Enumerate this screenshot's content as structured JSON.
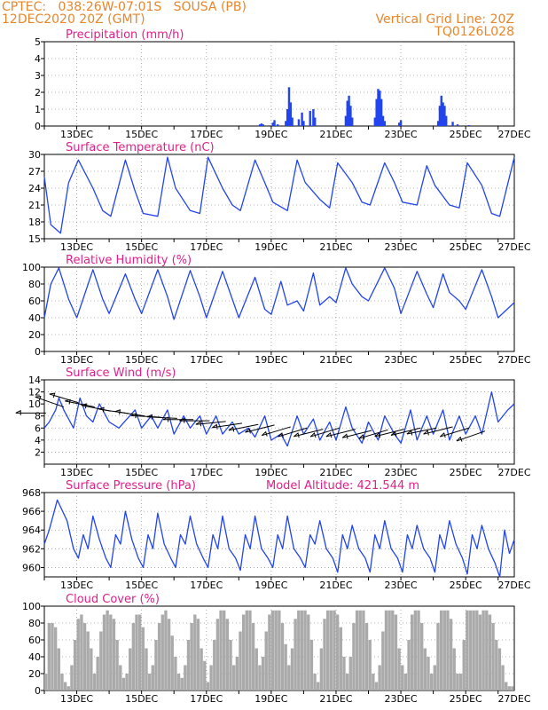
{
  "header": {
    "left_line1": "CPTEC:   038:26W-07:01S   SOUSA (PB)",
    "left_line2": "12DEC2020 20Z (GMT)",
    "right_line1": "Vertical Grid Line: 20Z",
    "right_line2": "TQ0126L028"
  },
  "model_altitude": "Model Altitude: 421.544 m",
  "colors": {
    "header": "#e8862a",
    "title": "#e0208a",
    "series": "#2244ee",
    "cloud": "#aaaaaa",
    "arrow": "#000000"
  },
  "chart_data": [
    {
      "type": "bar",
      "title": "Precipitation (mm/h)",
      "ylim": [
        0,
        5
      ],
      "yticks": [
        "5",
        "4",
        "3",
        "2",
        "1",
        "0"
      ],
      "xtick_labels": [
        "13DEC",
        "15DEC",
        "17DEC",
        "19DEC",
        "21DEC",
        "23DEC",
        "25DEC",
        "27DEC"
      ],
      "x_unit": "days since 12DEC 20Z (0-14.5)",
      "grid": true,
      "points": [
        [
          6.65,
          0.1
        ],
        [
          6.7,
          0.15
        ],
        [
          6.75,
          0.1
        ],
        [
          7.05,
          0.2
        ],
        [
          7.1,
          0.35
        ],
        [
          7.2,
          0.1
        ],
        [
          7.45,
          0.3
        ],
        [
          7.5,
          1.0
        ],
        [
          7.55,
          2.3
        ],
        [
          7.6,
          1.4
        ],
        [
          7.65,
          0.5
        ],
        [
          7.85,
          0.4
        ],
        [
          7.95,
          0.8
        ],
        [
          8.0,
          0.3
        ],
        [
          8.2,
          0.9
        ],
        [
          8.3,
          1.0
        ],
        [
          8.35,
          0.5
        ],
        [
          9.3,
          0.6
        ],
        [
          9.35,
          1.5
        ],
        [
          9.4,
          1.8
        ],
        [
          9.45,
          1.2
        ],
        [
          9.5,
          0.5
        ],
        [
          10.2,
          0.5
        ],
        [
          10.25,
          1.6
        ],
        [
          10.3,
          2.2
        ],
        [
          10.35,
          2.1
        ],
        [
          10.4,
          1.6
        ],
        [
          10.45,
          0.6
        ],
        [
          10.5,
          0.3
        ],
        [
          10.95,
          0.2
        ],
        [
          11.0,
          0.35
        ],
        [
          12.15,
          0.3
        ],
        [
          12.2,
          1.2
        ],
        [
          12.25,
          1.8
        ],
        [
          12.3,
          1.4
        ],
        [
          12.35,
          1.2
        ],
        [
          12.4,
          0.6
        ],
        [
          12.6,
          0.25
        ],
        [
          12.75,
          0.1
        ],
        [
          13.1,
          0.05
        ]
      ]
    },
    {
      "type": "line",
      "title": "Surface Temperature (nC)",
      "ylim": [
        15,
        30
      ],
      "yticks": [
        "30",
        "27",
        "24",
        "21",
        "18",
        "15"
      ],
      "xtick_labels": [
        "13DEC",
        "15DEC",
        "17DEC",
        "19DEC",
        "21DEC",
        "23DEC",
        "25DEC",
        "27DEC"
      ],
      "x_unit": "days since 12DEC 20Z (0-14.5)",
      "grid": true,
      "x": [
        0,
        0.2,
        0.5,
        0.75,
        1.05,
        1.5,
        1.8,
        2.05,
        2.5,
        2.8,
        3.05,
        3.5,
        3.8,
        4.05,
        4.5,
        4.8,
        5.05,
        5.5,
        5.8,
        6.05,
        6.5,
        6.8,
        7.05,
        7.5,
        7.8,
        8.05,
        8.5,
        8.8,
        9.05,
        9.5,
        9.8,
        10.05,
        10.5,
        10.8,
        11.05,
        11.5,
        11.8,
        12.05,
        12.5,
        12.8,
        13.05,
        13.5,
        13.8,
        14.05,
        14.5
      ],
      "y": [
        26,
        17.5,
        16,
        25,
        29,
        24,
        20,
        19,
        29,
        23.5,
        19.5,
        19,
        29.5,
        24,
        20,
        19.5,
        29.5,
        24,
        21,
        20,
        29,
        25,
        21.5,
        20,
        29,
        25,
        22,
        20.5,
        28.5,
        25,
        21.5,
        21,
        28.5,
        25,
        21.5,
        21,
        28,
        24.5,
        21,
        20.5,
        28.5,
        24.5,
        19.5,
        19,
        29.5
      ]
    },
    {
      "type": "line",
      "title": "Relative Humidity (%)",
      "ylim": [
        0,
        100
      ],
      "yticks": [
        "100",
        "80",
        "60",
        "40",
        "20",
        "0"
      ],
      "xtick_labels": [
        "13DEC",
        "15DEC",
        "17DEC",
        "19DEC",
        "21DEC",
        "23DEC",
        "25DEC",
        "27DEC"
      ],
      "x_unit": "days since 12DEC 20Z (0-14.5)",
      "grid": true,
      "x": [
        0,
        0.2,
        0.45,
        0.75,
        1.0,
        1.5,
        1.8,
        2.0,
        2.5,
        2.8,
        3.0,
        3.5,
        3.8,
        4.0,
        4.5,
        4.8,
        5.0,
        5.5,
        5.8,
        6.0,
        6.5,
        6.8,
        7.0,
        7.3,
        7.5,
        7.8,
        8.0,
        8.3,
        8.5,
        8.8,
        9.0,
        9.3,
        9.5,
        9.8,
        10.0,
        10.5,
        10.8,
        11.0,
        11.5,
        11.8,
        12.0,
        12.3,
        12.5,
        12.8,
        13.0,
        13.5,
        13.8,
        14.0,
        14.5
      ],
      "y": [
        40,
        80,
        99,
        62,
        40,
        97,
        62,
        45,
        92,
        62,
        45,
        97,
        65,
        38,
        96,
        65,
        40,
        95,
        62,
        40,
        88,
        50,
        44,
        83,
        55,
        60,
        48,
        93,
        55,
        65,
        58,
        99,
        80,
        65,
        60,
        99,
        75,
        45,
        95,
        68,
        52,
        92,
        70,
        60,
        50,
        97,
        65,
        40,
        58
      ]
    },
    {
      "type": "line",
      "title": "Surface Wind (m/s)",
      "ylim": [
        0,
        14
      ],
      "yticks": [
        "14",
        "12",
        "10",
        "8",
        "6",
        "4",
        "2"
      ],
      "xtick_labels": [
        "13DEC",
        "15DEC",
        "17DEC",
        "19DEC",
        "21DEC",
        "23DEC",
        "25DEC",
        "27DEC"
      ],
      "x_unit": "days since 12DEC 20Z (0-14.5)",
      "grid": true,
      "x": [
        0,
        0.15,
        0.35,
        0.45,
        0.6,
        0.9,
        1.1,
        1.3,
        1.5,
        1.7,
        2.0,
        2.3,
        2.55,
        2.8,
        3.0,
        3.3,
        3.5,
        3.8,
        4.0,
        4.3,
        4.5,
        4.8,
        5.0,
        5.3,
        5.5,
        5.8,
        6.0,
        6.3,
        6.5,
        6.8,
        7.0,
        7.3,
        7.5,
        7.8,
        8.0,
        8.3,
        8.5,
        8.8,
        9.0,
        9.3,
        9.5,
        9.8,
        10.0,
        10.3,
        10.5,
        10.8,
        11.0,
        11.3,
        11.5,
        11.8,
        12.0,
        12.3,
        12.5,
        12.8,
        13.0,
        13.3,
        13.5,
        13.8,
        14.0,
        14.3,
        14.5
      ],
      "y": [
        6,
        7,
        9,
        11,
        9,
        6,
        11,
        8,
        7,
        10,
        7,
        6,
        7.5,
        9,
        6,
        8,
        6,
        9,
        5,
        8,
        6,
        8,
        5,
        8,
        5,
        7,
        5,
        6,
        4.5,
        8,
        4,
        5,
        3,
        8,
        5,
        7.5,
        4,
        7,
        4,
        9.5,
        6,
        3.5,
        7,
        4,
        8,
        5,
        3.5,
        9,
        4,
        8,
        5,
        9,
        4,
        8,
        5,
        8,
        5,
        12,
        7,
        9,
        10
      ]
    },
    {
      "type": "line",
      "title": "Surface Pressure (hPa)",
      "ylim": [
        959,
        968
      ],
      "yticks": [
        "968",
        "966",
        "964",
        "962",
        "960"
      ],
      "xtick_labels": [
        "13DEC",
        "15DEC",
        "17DEC",
        "19DEC",
        "21DEC",
        "23DEC",
        "25DEC",
        "27DEC"
      ],
      "x_unit": "days since 12DEC 20Z (0-14.5)",
      "grid": true,
      "x": [
        0,
        0.15,
        0.4,
        0.7,
        0.9,
        1.05,
        1.2,
        1.35,
        1.5,
        1.7,
        1.9,
        2.05,
        2.2,
        2.35,
        2.5,
        2.7,
        2.9,
        3.05,
        3.2,
        3.35,
        3.5,
        3.7,
        3.9,
        4.05,
        4.2,
        4.35,
        4.5,
        4.7,
        4.9,
        5.05,
        5.2,
        5.35,
        5.5,
        5.7,
        5.9,
        6.05,
        6.2,
        6.35,
        6.5,
        6.7,
        6.9,
        7.05,
        7.2,
        7.35,
        7.5,
        7.7,
        7.9,
        8.05,
        8.2,
        8.35,
        8.5,
        8.7,
        8.9,
        9.05,
        9.2,
        9.35,
        9.5,
        9.7,
        9.9,
        10.05,
        10.2,
        10.35,
        10.5,
        10.7,
        10.9,
        11.05,
        11.2,
        11.35,
        11.5,
        11.7,
        11.9,
        12.05,
        12.2,
        12.35,
        12.5,
        12.7,
        12.9,
        13.05,
        13.2,
        13.35,
        13.5,
        13.7,
        13.9,
        14.05,
        14.2,
        14.35,
        14.5
      ],
      "y": [
        962.5,
        964,
        967.2,
        965,
        962,
        961,
        963.5,
        962,
        965.5,
        963,
        961,
        960,
        963.5,
        962.5,
        966,
        963,
        961,
        960,
        963.5,
        962,
        965.8,
        962.5,
        961,
        960,
        963.5,
        962.5,
        965.5,
        962.5,
        961,
        960,
        963.5,
        962,
        965.5,
        962,
        961,
        959.7,
        963.5,
        962,
        965.5,
        962,
        961,
        960,
        963.5,
        962,
        965.5,
        962,
        961,
        960,
        963.5,
        962.5,
        965,
        962,
        961,
        959.5,
        963.5,
        962,
        964.5,
        962,
        961,
        959.5,
        963.5,
        962,
        965,
        962,
        961,
        959.5,
        963.5,
        962,
        964.5,
        962,
        961,
        959.5,
        963.5,
        962,
        965,
        962.5,
        961,
        959.3,
        963.5,
        962,
        964.5,
        962,
        960.5,
        959,
        964,
        961.5,
        963
      ]
    },
    {
      "type": "bar",
      "title": "Cloud Cover (%)",
      "ylim": [
        0,
        100
      ],
      "yticks": [
        "100",
        "80",
        "60",
        "40",
        "20",
        "0"
      ],
      "xtick_labels": [
        "13DEC",
        "15DEC",
        "17DEC",
        "19DEC",
        "21DEC",
        "23DEC",
        "25DEC",
        "27DEC"
      ],
      "x_unit": "days since 12DEC 20Z (0-14.5)",
      "grid": true,
      "x": [
        0.05,
        0.15,
        0.25,
        0.35,
        0.45,
        0.55,
        0.65,
        0.75,
        0.85,
        0.95,
        1.05,
        1.15,
        1.25,
        1.35,
        1.45,
        1.55,
        1.65,
        1.75,
        1.85,
        1.95,
        2.05,
        2.15,
        2.25,
        2.35,
        2.45,
        2.55,
        2.65,
        2.75,
        2.85,
        2.95,
        3.05,
        3.15,
        3.25,
        3.35,
        3.45,
        3.55,
        3.65,
        3.75,
        3.85,
        3.95,
        4.05,
        4.15,
        4.25,
        4.35,
        4.45,
        4.55,
        4.65,
        4.75,
        4.85,
        4.95,
        5.05,
        5.15,
        5.25,
        5.35,
        5.45,
        5.55,
        5.65,
        5.75,
        5.85,
        5.95,
        6.05,
        6.15,
        6.25,
        6.35,
        6.45,
        6.55,
        6.65,
        6.75,
        6.85,
        6.95,
        7.05,
        7.15,
        7.25,
        7.35,
        7.45,
        7.55,
        7.65,
        7.75,
        7.85,
        7.95,
        8.05,
        8.15,
        8.25,
        8.35,
        8.45,
        8.55,
        8.65,
        8.75,
        8.85,
        8.95,
        9.05,
        9.15,
        9.25,
        9.35,
        9.45,
        9.55,
        9.65,
        9.75,
        9.85,
        9.95,
        10.05,
        10.15,
        10.25,
        10.35,
        10.45,
        10.55,
        10.65,
        10.75,
        10.85,
        10.95,
        11.05,
        11.15,
        11.25,
        11.35,
        11.45,
        11.55,
        11.65,
        11.75,
        11.85,
        11.95,
        12.05,
        12.15,
        12.25,
        12.35,
        12.45,
        12.55,
        12.65,
        12.75,
        12.85,
        12.95,
        13.05,
        13.15,
        13.25,
        13.35,
        13.45,
        13.55,
        13.65,
        13.75,
        13.85,
        13.95,
        14.05,
        14.15,
        14.25,
        14.35,
        14.45
      ],
      "values": [
        20,
        80,
        80,
        75,
        50,
        20,
        10,
        5,
        30,
        60,
        85,
        90,
        80,
        70,
        50,
        20,
        40,
        70,
        90,
        95,
        90,
        85,
        60,
        30,
        15,
        20,
        50,
        80,
        90,
        90,
        75,
        50,
        20,
        30,
        60,
        80,
        90,
        95,
        85,
        65,
        40,
        20,
        15,
        30,
        60,
        80,
        90,
        85,
        50,
        35,
        10,
        30,
        60,
        85,
        95,
        95,
        85,
        60,
        30,
        40,
        70,
        90,
        95,
        95,
        80,
        50,
        30,
        40,
        70,
        90,
        95,
        95,
        95,
        80,
        55,
        30,
        50,
        85,
        95,
        95,
        95,
        90,
        60,
        20,
        10,
        50,
        85,
        95,
        95,
        95,
        90,
        75,
        40,
        20,
        40,
        80,
        95,
        95,
        95,
        80,
        60,
        20,
        10,
        30,
        70,
        95,
        95,
        95,
        90,
        50,
        30,
        20,
        60,
        90,
        95,
        95,
        80,
        50,
        40,
        20,
        30,
        80,
        95,
        95,
        95,
        85,
        50,
        20,
        20,
        60,
        95,
        95,
        95,
        95,
        90,
        95,
        95,
        90,
        80,
        60,
        50,
        30,
        10,
        5,
        5
      ]
    }
  ],
  "wind_arrows": [
    {
      "x": 0.05,
      "y": 8.5,
      "u": 1.0,
      "v": 0.0
    },
    {
      "x": 0.6,
      "y": 9.5,
      "u": 1.0,
      "v": -0.35
    },
    {
      "x": 1.05,
      "y": 10.2,
      "u": 1.0,
      "v": -0.3
    },
    {
      "x": 1.55,
      "y": 9.5,
      "u": 1.0,
      "v": -0.2
    },
    {
      "x": 2.05,
      "y": 8.8,
      "u": 1.0,
      "v": -0.2
    },
    {
      "x": 2.6,
      "y": 8.4,
      "u": 1.0,
      "v": -0.15
    },
    {
      "x": 3.1,
      "y": 8.0,
      "u": 1.0,
      "v": -0.15
    },
    {
      "x": 3.6,
      "y": 7.8,
      "u": 1.0,
      "v": -0.05
    },
    {
      "x": 4.1,
      "y": 7.6,
      "u": 1.0,
      "v": -0.05
    },
    {
      "x": 4.6,
      "y": 7.4,
      "u": 1.0,
      "v": 0.0
    },
    {
      "x": 5.1,
      "y": 7.2,
      "u": 1.0,
      "v": 0.0
    },
    {
      "x": 5.6,
      "y": 7.1,
      "u": 1.0,
      "v": 0.1
    },
    {
      "x": 6.1,
      "y": 6.8,
      "u": 1.0,
      "v": 0.15
    },
    {
      "x": 6.6,
      "y": 6.6,
      "u": 1.0,
      "v": 0.2
    },
    {
      "x": 7.1,
      "y": 6.5,
      "u": 1.0,
      "v": 0.25
    },
    {
      "x": 7.6,
      "y": 6.2,
      "u": 1.0,
      "v": 0.3
    },
    {
      "x": 8.1,
      "y": 6.0,
      "u": 1.0,
      "v": 0.3
    },
    {
      "x": 8.6,
      "y": 5.8,
      "u": 1.0,
      "v": 0.25
    },
    {
      "x": 9.1,
      "y": 6.0,
      "u": 1.0,
      "v": 0.3
    },
    {
      "x": 9.6,
      "y": 5.8,
      "u": 1.0,
      "v": 0.25
    },
    {
      "x": 10.1,
      "y": 5.6,
      "u": 1.0,
      "v": 0.25
    },
    {
      "x": 10.6,
      "y": 5.7,
      "u": 1.0,
      "v": 0.3
    },
    {
      "x": 11.1,
      "y": 5.8,
      "u": 1.0,
      "v": 0.25
    },
    {
      "x": 11.6,
      "y": 6.0,
      "u": 1.0,
      "v": 0.25
    },
    {
      "x": 12.1,
      "y": 6.0,
      "u": 1.0,
      "v": 0.2
    },
    {
      "x": 12.6,
      "y": 6.2,
      "u": 1.0,
      "v": 0.25
    },
    {
      "x": 13.1,
      "y": 6.0,
      "u": 1.0,
      "v": 0.3
    },
    {
      "x": 13.6,
      "y": 5.5,
      "u": 1.0,
      "v": 0.35
    }
  ]
}
